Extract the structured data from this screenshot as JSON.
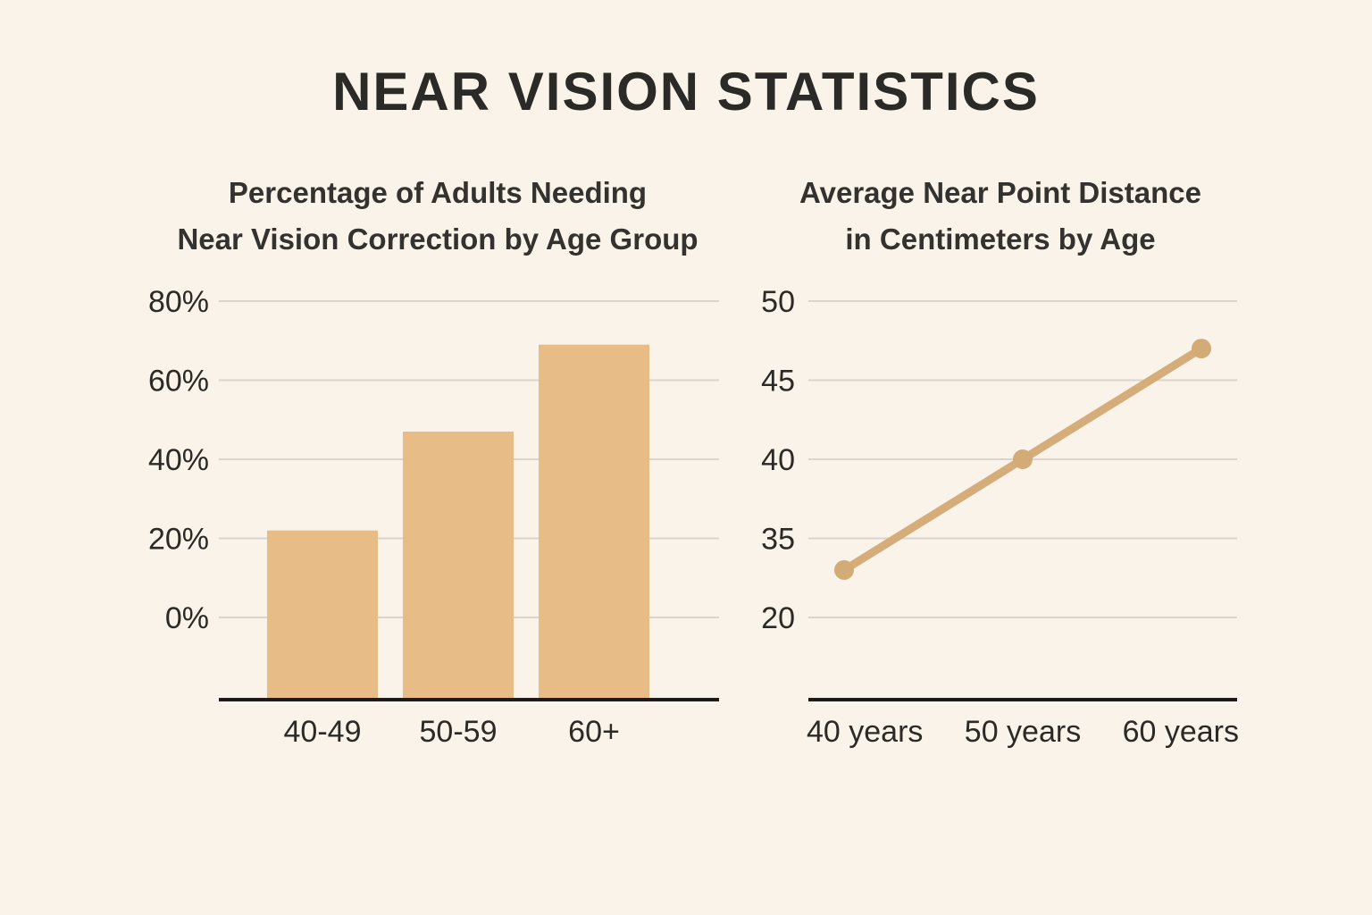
{
  "page": {
    "background": "#faf3e9",
    "title": "NEAR VISION STATISTICS"
  },
  "chart_data": [
    {
      "type": "bar",
      "title_lines": [
        "Percentage of Adults Needing",
        "Near Vision Correction by Age Group"
      ],
      "categories": [
        "40-49",
        "50-59",
        "60+"
      ],
      "values": [
        22,
        47,
        69
      ],
      "ytick_values": [
        80,
        60,
        40,
        20,
        0
      ],
      "ytick_labels": [
        "80%",
        "60%",
        "40%",
        "20%",
        "0%"
      ],
      "ylim": [
        0,
        80
      ],
      "grid": true,
      "legend": "none",
      "bar_color": "#e7bc86",
      "gridline_color": "#d9d5ce",
      "axis_color": "#1c1b19",
      "label_color": "#2b2a27"
    },
    {
      "type": "line",
      "title_lines": [
        "Average Near Point Distance",
        "in Centimeters by Age"
      ],
      "categories": [
        "40 years",
        "50 years",
        "60 years"
      ],
      "x": [
        40,
        50,
        60
      ],
      "values": [
        33,
        40,
        47
      ],
      "ytick_values": [
        50,
        45,
        40,
        35,
        20
      ],
      "ytick_labels": [
        "50",
        "45",
        "40",
        "35",
        "20"
      ],
      "grid": true,
      "legend": "none",
      "line_color": "#d5ad7a",
      "marker_color": "#d3ab77",
      "gridline_color": "#d9d5ce",
      "axis_color": "#1c1b19",
      "label_color": "#2b2a27"
    }
  ]
}
